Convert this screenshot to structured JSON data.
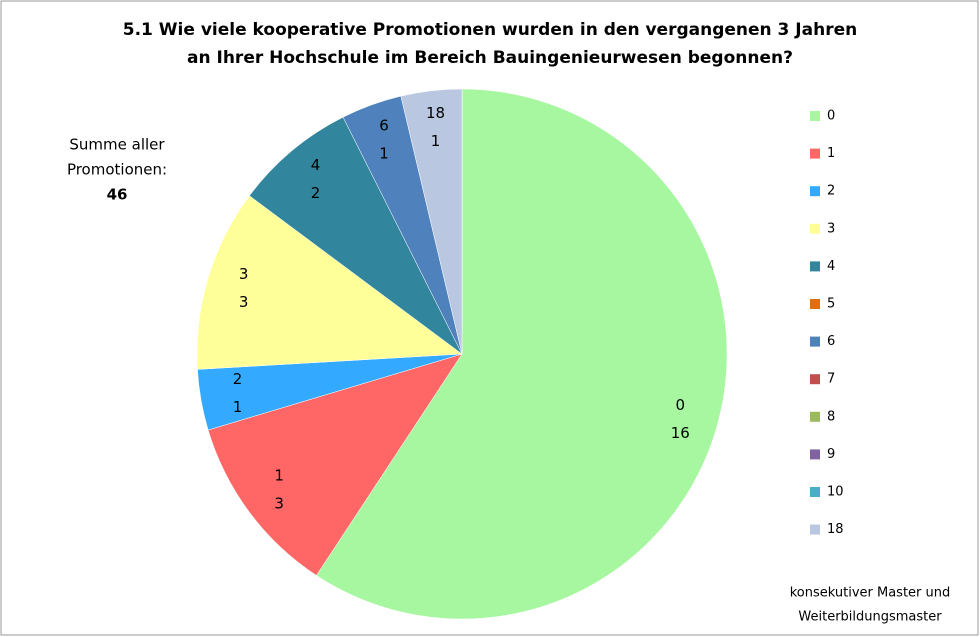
{
  "chart_data": {
    "type": "pie",
    "title": [
      "5.1  Wie viele kooperative Promotionen wurden in den vergangenen 3 Jahren",
      "an Ihrer Hochschule im Bereich Bauingenieurwesen begonnen?"
    ],
    "categories": [
      "0",
      "1",
      "2",
      "3",
      "4",
      "5",
      "6",
      "7",
      "8",
      "9",
      "10",
      "18"
    ],
    "values": [
      16,
      3,
      1,
      3,
      2,
      0,
      1,
      0,
      0,
      0,
      0,
      1
    ],
    "colors": [
      "#a6f7a0",
      "#ff6666",
      "#33aaff",
      "#ffff99",
      "#31859c",
      "#e46c0a",
      "#4f81bd",
      "#c0504d",
      "#9bbb59",
      "#8064a2",
      "#4bacc6",
      "#b9c7e1"
    ],
    "legend": "right",
    "annotations": {
      "sum": [
        "Summe aller",
        "Promotionen:"
      ],
      "sum_value": "46",
      "note": [
        "konsekutiver  Master und",
        "Weiterbildungsmaster"
      ]
    }
  }
}
